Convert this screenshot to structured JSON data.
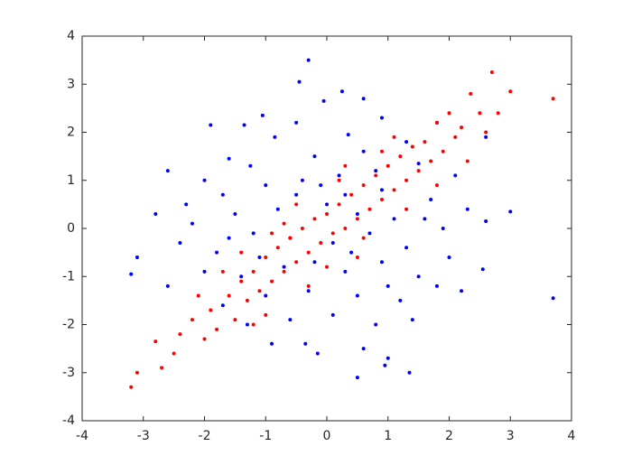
{
  "chart_data": {
    "type": "scatter",
    "xlim": [
      -4,
      4
    ],
    "xticks": [
      -4,
      -3,
      -2,
      -1,
      0,
      1,
      2,
      3,
      4
    ],
    "ylim": [
      -4,
      4
    ],
    "yticks": [
      -4,
      -3,
      -2,
      -1,
      0,
      1,
      2,
      3,
      4
    ],
    "series": [
      {
        "color": "#0000ff",
        "x": [
          -0.3,
          -0.45,
          0.25,
          0.6,
          -0.05,
          -1.05,
          -1.9,
          -1.35,
          -0.5,
          0.9,
          1.8,
          2.6,
          -1.6,
          -0.85,
          0.35,
          1.3,
          -2.6,
          -2.0,
          -1.25,
          -0.2,
          0.6,
          1.5,
          2.1,
          -2.3,
          -1.7,
          -1.0,
          -0.4,
          0.2,
          0.9,
          1.7,
          2.3,
          3.0,
          -2.8,
          -2.2,
          -1.5,
          -0.8,
          0.0,
          0.5,
          1.1,
          1.9,
          2.6,
          -3.1,
          -3.2,
          -2.4,
          -1.8,
          -1.2,
          -0.6,
          0.1,
          0.7,
          1.3,
          2.0,
          2.55,
          3.7,
          -2.6,
          -2.0,
          -1.4,
          -0.7,
          0.3,
          0.9,
          1.5,
          2.2,
          -1.7,
          -1.0,
          -0.3,
          0.5,
          1.2,
          1.8,
          -1.3,
          -0.6,
          0.1,
          0.8,
          1.4,
          -0.9,
          -0.15,
          0.6,
          1.0,
          0.5,
          1.35,
          0.95,
          -0.35,
          -0.5,
          0.4,
          -0.1,
          0.8,
          -1.1,
          1.0,
          -0.2,
          0.3,
          -1.6,
          1.6
        ],
        "values": [
          3.5,
          3.05,
          2.85,
          2.7,
          2.65,
          2.35,
          2.15,
          2.15,
          2.2,
          2.3,
          2.2,
          1.9,
          1.45,
          1.9,
          1.95,
          1.8,
          1.2,
          1.0,
          1.3,
          1.5,
          1.6,
          1.35,
          1.1,
          0.5,
          0.7,
          0.9,
          1.0,
          1.1,
          0.8,
          0.6,
          0.4,
          0.35,
          0.3,
          0.1,
          0.3,
          0.4,
          0.5,
          0.3,
          0.2,
          0.0,
          0.15,
          -0.6,
          -0.95,
          -0.3,
          -0.5,
          -0.1,
          -0.2,
          -0.3,
          -0.1,
          -0.4,
          -0.6,
          -0.85,
          -1.45,
          -1.2,
          -0.9,
          -1.0,
          -0.8,
          -0.9,
          -0.7,
          -1.0,
          -1.3,
          -1.6,
          -1.4,
          -1.3,
          -1.4,
          -1.5,
          -1.2,
          -2.0,
          -1.9,
          -1.8,
          -2.0,
          -1.9,
          -2.4,
          -2.6,
          -2.5,
          -2.7,
          -3.1,
          -3.0,
          -2.85,
          -2.4,
          0.7,
          -0.5,
          0.9,
          1.2,
          -0.6,
          -1.2,
          -0.7,
          0.7,
          -0.2,
          0.2
        ]
      },
      {
        "color": "#ff0000",
        "x": [
          -3.2,
          -3.1,
          -2.7,
          -2.8,
          -2.5,
          -2.4,
          -2.2,
          -2.0,
          -1.9,
          -1.8,
          -1.6,
          -1.5,
          -1.4,
          -1.3,
          -1.2,
          -1.1,
          -1.0,
          -0.9,
          -0.8,
          -0.7,
          -0.6,
          -0.5,
          -0.4,
          -0.3,
          -0.2,
          -0.1,
          0.0,
          0.1,
          0.2,
          0.3,
          0.4,
          0.5,
          0.6,
          0.7,
          0.8,
          0.9,
          1.0,
          1.1,
          1.2,
          1.3,
          1.4,
          1.5,
          1.6,
          1.7,
          1.8,
          1.9,
          2.0,
          2.1,
          2.2,
          2.35,
          2.5,
          2.6,
          2.7,
          2.8,
          3.0,
          3.7,
          -1.7,
          -1.0,
          -0.5,
          0.5,
          0.9,
          1.3,
          -0.3,
          0.2,
          -1.4,
          1.1,
          -0.7,
          0.6,
          -2.1,
          1.8,
          -0.9,
          0.0,
          0.3,
          -1.2,
          2.3
        ],
        "values": [
          -3.3,
          -3.0,
          -2.9,
          -2.35,
          -2.6,
          -2.2,
          -1.9,
          -2.3,
          -1.7,
          -2.1,
          -1.4,
          -1.9,
          -1.1,
          -1.5,
          -0.9,
          -1.3,
          -0.6,
          -1.1,
          -0.4,
          -0.9,
          -0.2,
          -0.7,
          0.0,
          -0.5,
          0.2,
          -0.3,
          0.3,
          -0.1,
          0.5,
          0.0,
          0.7,
          0.2,
          0.9,
          0.4,
          1.1,
          0.6,
          1.3,
          0.8,
          1.5,
          1.0,
          1.7,
          1.2,
          1.8,
          1.4,
          2.2,
          1.6,
          2.4,
          1.9,
          2.1,
          2.8,
          2.4,
          2.0,
          3.25,
          2.4,
          2.85,
          2.7,
          -0.9,
          -1.8,
          0.5,
          -0.6,
          1.6,
          0.4,
          -1.2,
          1.0,
          -0.5,
          1.9,
          0.1,
          -0.2,
          -1.4,
          0.9,
          -0.1,
          -0.8,
          1.3,
          -2.0,
          1.4
        ]
      }
    ]
  }
}
